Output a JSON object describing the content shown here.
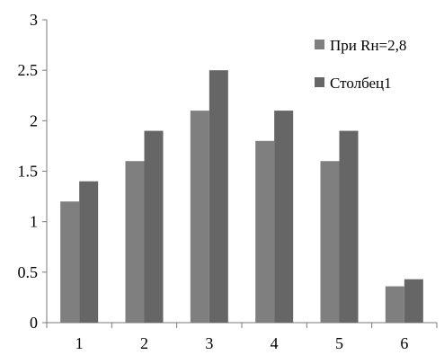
{
  "chart_data": {
    "type": "bar",
    "categories": [
      "1",
      "2",
      "3",
      "4",
      "5",
      "6"
    ],
    "series": [
      {
        "name": "При Rн=2,8",
        "values": [
          1.2,
          1.6,
          2.1,
          1.8,
          1.6,
          0.36
        ],
        "color": "#7f7f7f"
      },
      {
        "name": "Столбец1",
        "values": [
          1.4,
          1.9,
          2.5,
          2.1,
          1.9,
          0.43
        ],
        "color": "#666666"
      }
    ],
    "ylim": [
      0,
      3
    ],
    "yticks": [
      "0",
      "0.5",
      "1",
      "1.5",
      "2",
      "2.5",
      "3"
    ],
    "grid": false,
    "legend_position": "top-right"
  }
}
